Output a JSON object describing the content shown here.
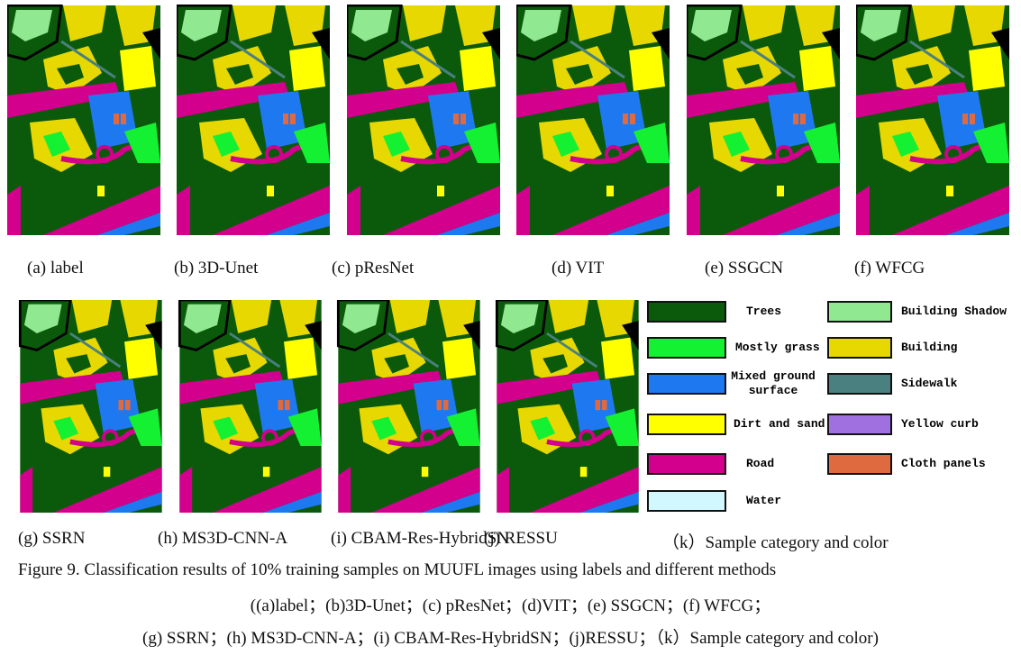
{
  "panels": [
    {
      "label": "(a) label"
    },
    {
      "label": "(b) 3D-Unet"
    },
    {
      "label": "(c) pResNet"
    },
    {
      "label": "(d) VIT"
    },
    {
      "label": "(e) SSGCN"
    },
    {
      "label": "(f) WFCG"
    },
    {
      "label": "(g) SSRN"
    },
    {
      "label": "(h) MS3D-CNN-A"
    },
    {
      "label": "(i) CBAM-Res-HybridSN"
    },
    {
      "label": "(j) RESSU"
    },
    {
      "label": "（k）Sample category and color"
    }
  ],
  "legend": [
    {
      "label": "Trees",
      "color": "#0b5a0b"
    },
    {
      "label": "Mostly grass",
      "color": "#14f032"
    },
    {
      "label": "Mixed ground surface",
      "color": "#1e78f0"
    },
    {
      "label": "Dirt and sand",
      "color": "#ffff00"
    },
    {
      "label": "Road",
      "color": "#d2008c"
    },
    {
      "label": "Water",
      "color": "#d2f8ff"
    },
    {
      "label": "Building Shadow",
      "color": "#90e890"
    },
    {
      "label": "Building",
      "color": "#e6d800"
    },
    {
      "label": "Sidewalk",
      "color": "#4a8080"
    },
    {
      "label": "Yellow curb",
      "color": "#a070e0"
    },
    {
      "label": "Cloth panels",
      "color": "#e06a40"
    }
  ],
  "caption": [
    "Figure 9. Classification results of 10% training samples on MUUFL images using labels and different methods",
    "((a)label；(b)3D-Unet；(c) pResNet；(d)VIT；(e) SSGCN；(f) WFCG；",
    "(g) SSRN；(h) MS3D-CNN-A；(i) CBAM-Res-HybridSN；(j)RESSU；（k）Sample category and color)"
  ]
}
